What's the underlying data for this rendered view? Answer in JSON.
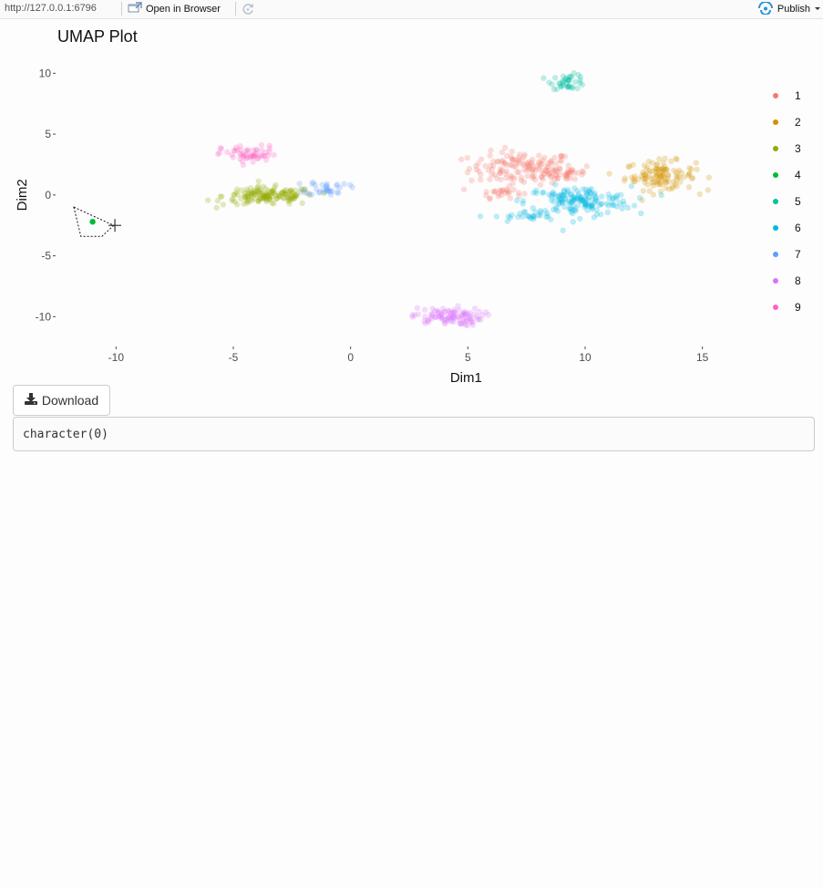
{
  "toolbar": {
    "url": "http://127.0.0.1:6796",
    "open_in_browser_label": "Open in Browser",
    "publish_label": "Publish",
    "icons": {
      "open_in_browser": "open-in-browser-icon",
      "refresh": "refresh-icon",
      "publish": "publish-icon",
      "publish_menu": "caret-down-icon"
    }
  },
  "plot": {
    "title": "UMAP Plot"
  },
  "download": {
    "label": "Download",
    "icon": "download-icon"
  },
  "output": {
    "text": "character(0)"
  },
  "lasso": {
    "cursor_icon": "crosshair-icon",
    "selected_point": {
      "x": -11.0,
      "y": -2.2,
      "cluster": "4"
    },
    "polygon": [
      [
        -11.8,
        -1.0
      ],
      [
        -10.1,
        -2.5
      ],
      [
        -10.6,
        -3.4
      ],
      [
        -11.5,
        -3.4
      ]
    ]
  },
  "chart_data": {
    "type": "scatter",
    "title": "UMAP Plot",
    "xlabel": "Dim1",
    "ylabel": "Dim2",
    "xlim": [
      -12.5,
      17.5
    ],
    "ylim": [
      -12.3,
      11.0
    ],
    "xticks": [
      -10,
      -5,
      0,
      5,
      10,
      15
    ],
    "yticks": [
      10,
      5,
      0,
      -5,
      -10
    ],
    "grid": false,
    "legend_position": "right",
    "point_alpha": 0.25,
    "series": [
      {
        "name": "1",
        "color": "#F8766D",
        "shape": "blob",
        "clusters": [
          {
            "cx": 7.3,
            "cy": 2.2,
            "sx": 1.5,
            "sy": 0.9,
            "n": 140
          },
          {
            "cx": 9.3,
            "cy": 1.8,
            "sx": 0.7,
            "sy": 0.5,
            "n": 30
          },
          {
            "cx": 6.4,
            "cy": 0.2,
            "sx": 0.6,
            "sy": 0.3,
            "n": 25
          }
        ]
      },
      {
        "name": "2",
        "color": "#D39200",
        "shape": "blob",
        "clusters": [
          {
            "cx": 13.2,
            "cy": 1.6,
            "sx": 1.0,
            "sy": 0.8,
            "n": 120
          }
        ]
      },
      {
        "name": "3",
        "color": "#93AA00",
        "shape": "blob",
        "clusters": [
          {
            "cx": -3.5,
            "cy": -0.1,
            "sx": 1.3,
            "sy": 0.5,
            "n": 150
          }
        ]
      },
      {
        "name": "4",
        "color": "#00BA38",
        "shape": "point",
        "points": [
          [
            -11.0,
            -2.2
          ]
        ]
      },
      {
        "name": "5",
        "color": "#00C19F",
        "shape": "blob",
        "clusters": [
          {
            "cx": 9.3,
            "cy": 9.3,
            "sx": 0.5,
            "sy": 0.4,
            "n": 40
          }
        ]
      },
      {
        "name": "6",
        "color": "#00B9E3",
        "shape": "blob",
        "clusters": [
          {
            "cx": 9.7,
            "cy": -0.5,
            "sx": 1.5,
            "sy": 0.8,
            "n": 160
          },
          {
            "cx": 7.5,
            "cy": -1.8,
            "sx": 0.9,
            "sy": 0.3,
            "n": 25
          }
        ]
      },
      {
        "name": "7",
        "color": "#619CFF",
        "shape": "blob",
        "clusters": [
          {
            "cx": -1.0,
            "cy": 0.6,
            "sx": 0.6,
            "sy": 0.4,
            "n": 35
          }
        ]
      },
      {
        "name": "8",
        "color": "#DB72FB",
        "shape": "blob",
        "clusters": [
          {
            "cx": 4.1,
            "cy": -10.0,
            "sx": 1.0,
            "sy": 0.5,
            "n": 100
          }
        ]
      },
      {
        "name": "9",
        "color": "#FF61C3",
        "shape": "blob",
        "clusters": [
          {
            "cx": -4.3,
            "cy": 3.3,
            "sx": 0.8,
            "sy": 0.5,
            "n": 55
          }
        ]
      }
    ]
  }
}
